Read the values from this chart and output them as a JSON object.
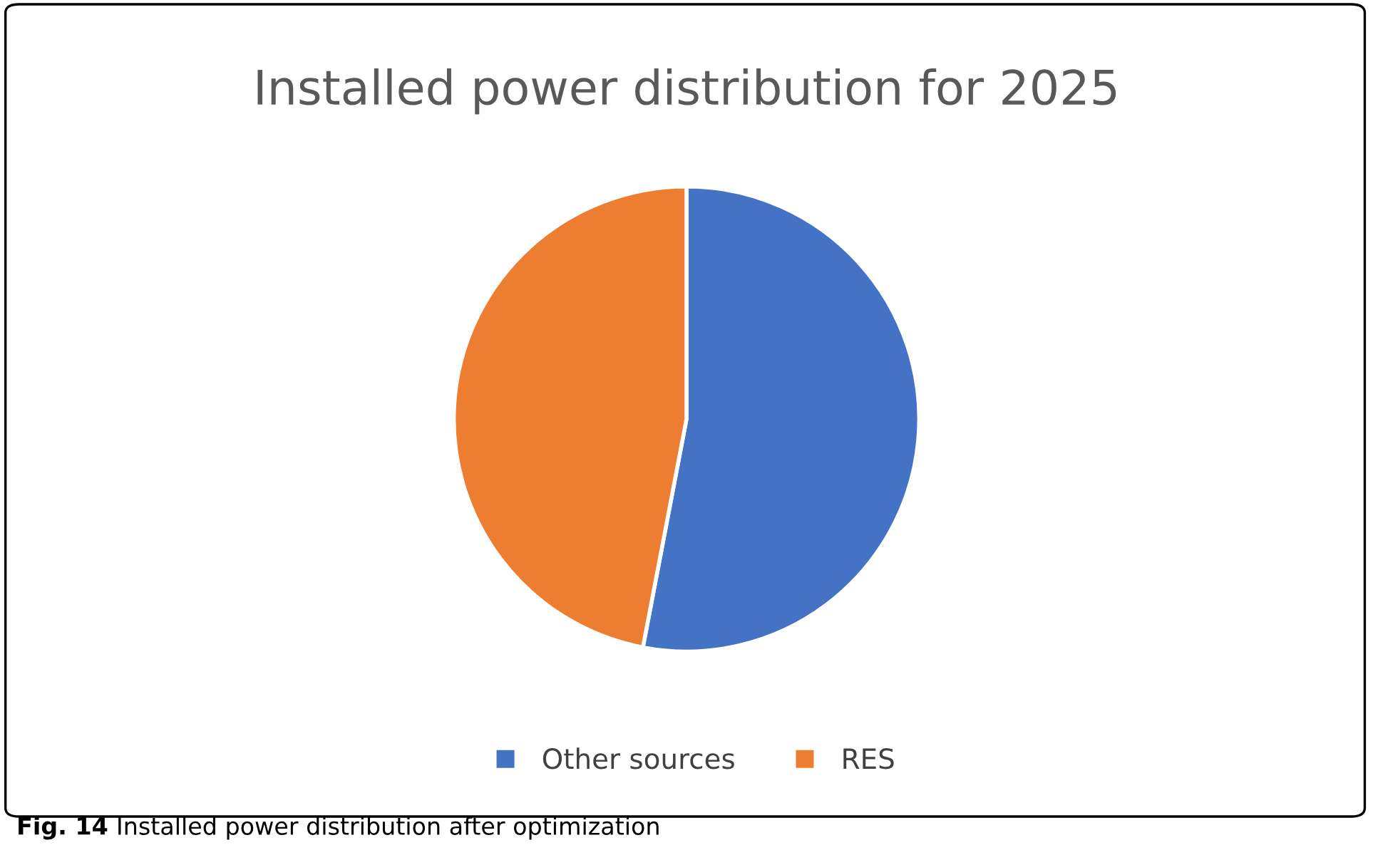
{
  "chart_data": {
    "type": "pie",
    "title": "Installed power distribution for 2025",
    "categories": [
      "Other sources",
      "RES"
    ],
    "values": [
      53,
      47
    ],
    "colors": [
      "#4472c4",
      "#ed7d31"
    ],
    "legend": "bottom",
    "annotations": [
      "Fig. 14",
      "Installed power distribution after optimization"
    ]
  }
}
